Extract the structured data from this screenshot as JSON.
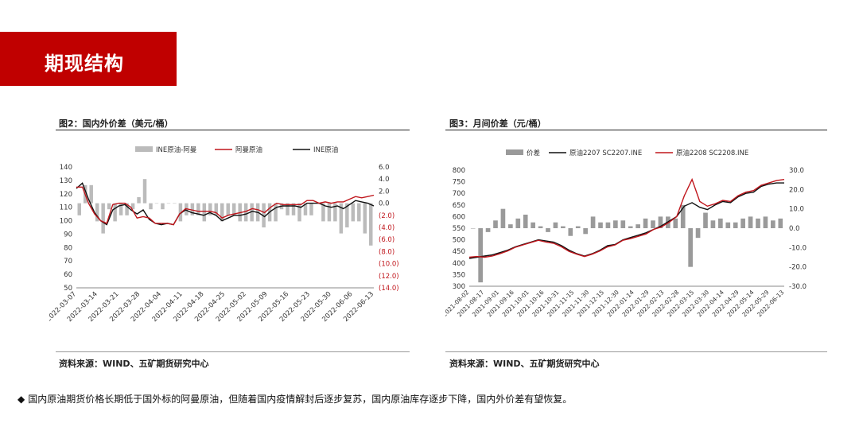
{
  "header": {
    "title": "期现结构"
  },
  "chart_data": [
    {
      "type": "line",
      "title": "图2：国内外价差（美元/桶）",
      "source": "资料来源：WIND、五矿期货研究中心",
      "legend": [
        "INE原油-阿曼",
        "阿曼原油",
        "INE原油"
      ],
      "legend_position": "top",
      "colors": {
        "spread": "#bbbbbb",
        "oman": "#c0161c",
        "ine": "#111111",
        "right_axis_text": "#c0161c"
      },
      "x_tick_labels": [
        "2022-03-07",
        "2022-03-14",
        "2022-03-21",
        "2022-03-28",
        "2022-04-04",
        "2022-04-11",
        "2022-04-18",
        "2022-04-25",
        "2022-05-02",
        "2022-05-09",
        "2022-05-16",
        "2022-05-23",
        "2022-05-30",
        "2022-06-06",
        "2022-06-13"
      ],
      "y_left": {
        "range": [
          50,
          140
        ],
        "ticks": [
          "140",
          "130",
          "120",
          "110",
          "100",
          "90",
          "80",
          "70",
          "60",
          "50"
        ]
      },
      "y_right": {
        "range": [
          -14,
          6
        ],
        "ticks": [
          "6.0",
          "4.0",
          "2.0",
          "0.0",
          "(2.0)",
          "(4.0)",
          "(6.0)",
          "(8.0)",
          "(10.0)",
          "(12.0)",
          "(14.0)"
        ]
      },
      "series": [
        {
          "name": "INE原油",
          "type": "line",
          "values": [
            124,
            128,
            116,
            106,
            100,
            97,
            108,
            111,
            112,
            108,
            105,
            108,
            101,
            98,
            97,
            98,
            97,
            105,
            108,
            106,
            105,
            104,
            106,
            104,
            100,
            102,
            104,
            104,
            105,
            107,
            106,
            103,
            107,
            110,
            111,
            111,
            111,
            110,
            113,
            113,
            113,
            111,
            110,
            111,
            109,
            112,
            115,
            114,
            113,
            111
          ]
        },
        {
          "name": "阿曼原油",
          "type": "line",
          "values": [
            125,
            125,
            113,
            105,
            100,
            98,
            112,
            113,
            113,
            110,
            102,
            103,
            102,
            98,
            98,
            98,
            97,
            105,
            109,
            108,
            107,
            107,
            107,
            106,
            102,
            104,
            105,
            106,
            107,
            109,
            108,
            106,
            110,
            113,
            112,
            112,
            112,
            112,
            115,
            115,
            113,
            114,
            113,
            114,
            114,
            116,
            118,
            117,
            118,
            119
          ]
        },
        {
          "name": "INE原油-阿曼",
          "type": "bar",
          "values": [
            -2,
            3,
            3,
            -3,
            -5,
            -1,
            -3,
            -2,
            -2,
            -1,
            1,
            4,
            -1,
            0,
            -1,
            0,
            0,
            -3,
            -2,
            -2,
            -2,
            -3,
            -2,
            -2,
            -3,
            -2,
            -2,
            -3,
            -3,
            -3,
            -3,
            -4,
            -3,
            -3,
            -1,
            -2,
            -2,
            -3,
            -2,
            -2,
            0,
            -3,
            -3,
            -3,
            -5,
            -4,
            -3,
            -3,
            -5,
            -7
          ]
        }
      ]
    },
    {
      "type": "line",
      "title": "图3：月间价差（元/桶）",
      "source": "资料来源：WIND、五矿期货研究中心",
      "legend": [
        "价差",
        "原油2207 SC2207.INE",
        "原油2208 SC2208.INE"
      ],
      "legend_position": "top",
      "colors": {
        "spread": "#9a9a9a",
        "sc2207": "#111111",
        "sc2208": "#c0161c"
      },
      "x_tick_labels": [
        "2021-08-02",
        "2021-08-17",
        "2021-09-01",
        "2021-09-16",
        "2021-10-01",
        "2021-10-16",
        "2021-10-31",
        "2021-11-15",
        "2021-11-30",
        "2021-12-15",
        "2021-12-30",
        "2022-01-14",
        "2022-01-29",
        "2022-02-13",
        "2022-02-28",
        "2022-03-15",
        "2022-03-30",
        "2022-04-14",
        "2022-04-29",
        "2022-05-14",
        "2022-05-29",
        "2022-06-13"
      ],
      "y_left": {
        "range": [
          300,
          800
        ],
        "ticks": [
          "800",
          "750",
          "700",
          "650",
          "600",
          "550",
          "500",
          "450",
          "400",
          "350",
          "300"
        ]
      },
      "y_right": {
        "range": [
          -30,
          30
        ],
        "ticks": [
          "30.0",
          "20.0",
          "10.0",
          "0.0",
          "-10.0",
          "-20.0",
          "-30.0"
        ]
      },
      "series": [
        {
          "name": "原油2207 SC2207.INE",
          "type": "line",
          "values": [
            420,
            425,
            430,
            435,
            445,
            455,
            470,
            480,
            490,
            500,
            495,
            490,
            475,
            455,
            440,
            430,
            440,
            455,
            475,
            480,
            500,
            510,
            520,
            530,
            545,
            560,
            580,
            600,
            645,
            660,
            640,
            630,
            650,
            665,
            660,
            685,
            700,
            705,
            730,
            740,
            745,
            745
          ]
        },
        {
          "name": "原油2208 SC2208.INE",
          "type": "line",
          "values": [
            425,
            428,
            425,
            430,
            440,
            452,
            468,
            478,
            488,
            498,
            490,
            485,
            470,
            450,
            438,
            428,
            438,
            452,
            470,
            478,
            498,
            505,
            515,
            525,
            545,
            555,
            575,
            600,
            690,
            760,
            665,
            645,
            655,
            670,
            665,
            690,
            705,
            712,
            735,
            745,
            755,
            760
          ]
        },
        {
          "name": "价差",
          "type": "bar",
          "values": [
            0,
            -28,
            -2,
            4,
            10,
            2,
            5,
            7,
            3,
            1,
            -2,
            3,
            1,
            -4,
            1,
            -3,
            6,
            3,
            3,
            4,
            4,
            1,
            2,
            5,
            4,
            6,
            6,
            5,
            12,
            -20,
            -5,
            8,
            4,
            5,
            3,
            3,
            5,
            6,
            5,
            6,
            4,
            5
          ]
        }
      ]
    }
  ],
  "footnote": {
    "bullet": "◆",
    "text": "国内原油期货价格长期低于国外标的阿曼原油，但随着国内疫情解封后逐步复苏，国内原油库存逐步下降，国内外价差有望恢复。"
  }
}
